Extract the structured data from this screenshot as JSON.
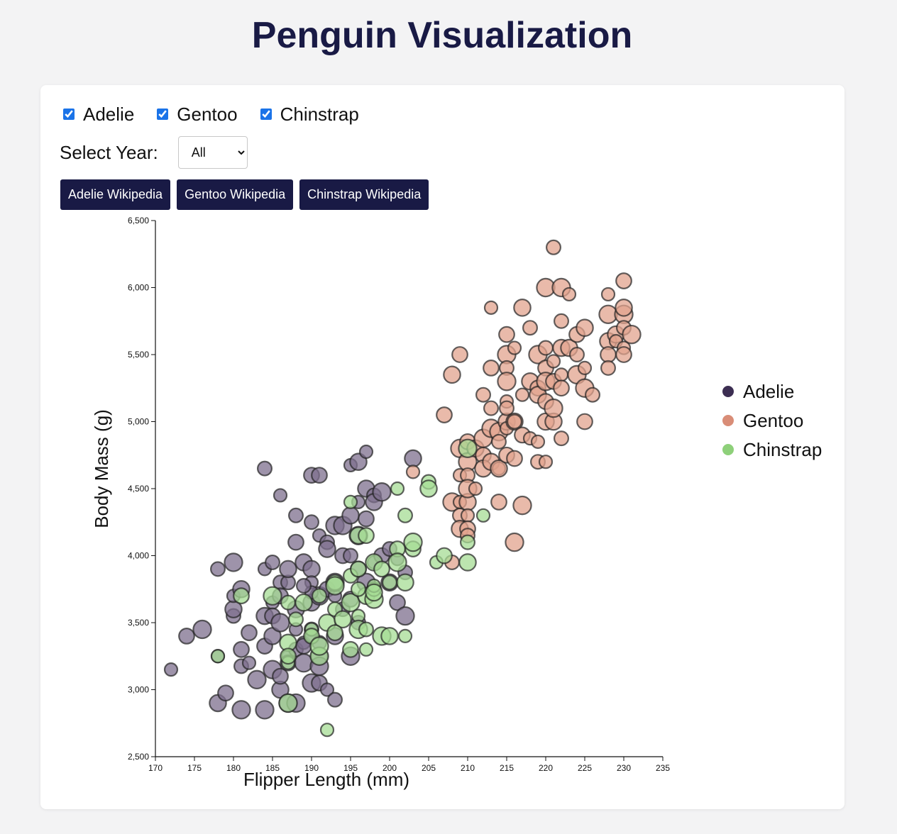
{
  "header": {
    "title": "Penguin Visualization"
  },
  "filters": {
    "species": [
      {
        "label": "Adelie",
        "checked": true
      },
      {
        "label": "Gentoo",
        "checked": true
      },
      {
        "label": "Chinstrap",
        "checked": true
      }
    ],
    "year_label": "Select Year:",
    "year_selected": "All"
  },
  "links": [
    {
      "label": "Adelie Wikipedia"
    },
    {
      "label": "Gentoo Wikipedia"
    },
    {
      "label": "Chinstrap Wikipedia"
    }
  ],
  "chart_data": {
    "type": "scatter",
    "title": "",
    "xlabel": "Flipper Length (mm)",
    "ylabel": "Body Mass (g)",
    "xlim": [
      170,
      235
    ],
    "ylim": [
      2500,
      6500
    ],
    "xticks": [
      170,
      175,
      180,
      185,
      190,
      195,
      200,
      205,
      210,
      215,
      220,
      225,
      230,
      235
    ],
    "yticks": [
      2500,
      3000,
      3500,
      4000,
      4500,
      5000,
      5500,
      6000,
      6500
    ],
    "ytick_labels": [
      "2,500",
      "3,000",
      "3,500",
      "4,000",
      "4,500",
      "5,000",
      "5,500",
      "6,000",
      "6,500"
    ],
    "grid": false,
    "legend_position": "right",
    "series": [
      {
        "name": "Adelie",
        "color": "#3c2e52",
        "fill": "#7d6f8e",
        "points": [
          [
            172,
            3150
          ],
          [
            174,
            3400
          ],
          [
            176,
            3450
          ],
          [
            178,
            3900
          ],
          [
            178,
            2900
          ],
          [
            178,
            3250
          ],
          [
            179,
            2975
          ],
          [
            180,
            3950
          ],
          [
            180,
            3550
          ],
          [
            180,
            3600
          ],
          [
            180,
            3700
          ],
          [
            181,
            3300
          ],
          [
            181,
            2850
          ],
          [
            181,
            3175
          ],
          [
            181,
            3750
          ],
          [
            182,
            3200
          ],
          [
            182,
            3425
          ],
          [
            183,
            3075
          ],
          [
            184,
            4650
          ],
          [
            184,
            3550
          ],
          [
            184,
            3900
          ],
          [
            184,
            3325
          ],
          [
            184,
            2850
          ],
          [
            185,
            3950
          ],
          [
            185,
            3400
          ],
          [
            185,
            3650
          ],
          [
            185,
            3550
          ],
          [
            185,
            3150
          ],
          [
            186,
            3800
          ],
          [
            186,
            3000
          ],
          [
            186,
            4450
          ],
          [
            186,
            3100
          ],
          [
            186,
            3500
          ],
          [
            187,
            3800
          ],
          [
            187,
            3900
          ],
          [
            187,
            3250
          ],
          [
            187,
            3200
          ],
          [
            187,
            2900
          ],
          [
            188,
            3300
          ],
          [
            188,
            3600
          ],
          [
            188,
            3450
          ],
          [
            188,
            4100
          ],
          [
            188,
            2900
          ],
          [
            188,
            4300
          ],
          [
            189,
            3950
          ],
          [
            189,
            3350
          ],
          [
            189,
            3325
          ],
          [
            189,
            3200
          ],
          [
            190,
            4250
          ],
          [
            190,
            3900
          ],
          [
            190,
            3800
          ],
          [
            190,
            4600
          ],
          [
            190,
            3050
          ],
          [
            190,
            3450
          ],
          [
            190,
            3650
          ],
          [
            190,
            3400
          ],
          [
            191,
            4600
          ],
          [
            191,
            3700
          ],
          [
            191,
            3350
          ],
          [
            191,
            3250
          ],
          [
            191,
            4150
          ],
          [
            191,
            3050
          ],
          [
            191,
            3175
          ],
          [
            192,
            4100
          ],
          [
            192,
            4050
          ],
          [
            192,
            3000
          ],
          [
            192,
            3750
          ],
          [
            193,
            4225
          ],
          [
            193,
            2925
          ],
          [
            193,
            3400
          ],
          [
            193,
            3700
          ],
          [
            194,
            4000
          ],
          [
            194,
            4225
          ],
          [
            194,
            3600
          ],
          [
            195,
            4300
          ],
          [
            195,
            4675
          ],
          [
            195,
            3675
          ],
          [
            195,
            3250
          ],
          [
            195,
            4000
          ],
          [
            196,
            4700
          ],
          [
            196,
            4400
          ],
          [
            196,
            3900
          ],
          [
            196,
            4150
          ],
          [
            196,
            3500
          ],
          [
            197,
            4500
          ],
          [
            197,
            4775
          ],
          [
            197,
            4275
          ],
          [
            197,
            3800
          ],
          [
            198,
            4450
          ],
          [
            198,
            4400
          ],
          [
            198,
            3950
          ],
          [
            199,
            4000
          ],
          [
            199,
            4475
          ],
          [
            200,
            4050
          ],
          [
            200,
            3800
          ],
          [
            201,
            3975
          ],
          [
            201,
            3650
          ],
          [
            202,
            3550
          ],
          [
            202,
            3875
          ],
          [
            203,
            4725
          ],
          [
            190,
            3725
          ],
          [
            186,
            3700
          ],
          [
            193,
            3800
          ],
          [
            189,
            3775
          ]
        ]
      },
      {
        "name": "Gentoo",
        "color": "#3a2b24",
        "fill": "#e2a38e",
        "points": [
          [
            203,
            4625
          ],
          [
            207,
            5050
          ],
          [
            208,
            4400
          ],
          [
            208,
            3950
          ],
          [
            208,
            5350
          ],
          [
            209,
            4600
          ],
          [
            209,
            5500
          ],
          [
            209,
            4800
          ],
          [
            209,
            4300
          ],
          [
            209,
            4200
          ],
          [
            209,
            4400
          ],
          [
            210,
            4850
          ],
          [
            210,
            4700
          ],
          [
            210,
            4600
          ],
          [
            210,
            4400
          ],
          [
            210,
            4300
          ],
          [
            210,
            4200
          ],
          [
            210,
            4500
          ],
          [
            210,
            4150
          ],
          [
            211,
            4800
          ],
          [
            211,
            4500
          ],
          [
            212,
            4750
          ],
          [
            212,
            4875
          ],
          [
            212,
            5200
          ],
          [
            212,
            4650
          ],
          [
            213,
            5850
          ],
          [
            213,
            5400
          ],
          [
            213,
            4950
          ],
          [
            213,
            5100
          ],
          [
            213,
            4700
          ],
          [
            214,
            4650
          ],
          [
            214,
            4400
          ],
          [
            214,
            4925
          ],
          [
            214,
            4850
          ],
          [
            214,
            4650
          ],
          [
            215,
            5150
          ],
          [
            215,
            5650
          ],
          [
            215,
            5500
          ],
          [
            215,
            5400
          ],
          [
            215,
            5000
          ],
          [
            215,
            4950
          ],
          [
            215,
            4750
          ],
          [
            215,
            5300
          ],
          [
            215,
            5100
          ],
          [
            216,
            5000
          ],
          [
            216,
            5550
          ],
          [
            216,
            4725
          ],
          [
            216,
            4100
          ],
          [
            216,
            5000
          ],
          [
            217,
            5850
          ],
          [
            217,
            5200
          ],
          [
            217,
            4900
          ],
          [
            217,
            4375
          ],
          [
            218,
            5700
          ],
          [
            218,
            5300
          ],
          [
            218,
            4875
          ],
          [
            219,
            5250
          ],
          [
            219,
            5500
          ],
          [
            219,
            4700
          ],
          [
            219,
            5200
          ],
          [
            219,
            4850
          ],
          [
            220,
            5400
          ],
          [
            220,
            6000
          ],
          [
            220,
            5550
          ],
          [
            220,
            5000
          ],
          [
            220,
            4700
          ],
          [
            220,
            5150
          ],
          [
            220,
            5300
          ],
          [
            221,
            6300
          ],
          [
            221,
            5000
          ],
          [
            221,
            5450
          ],
          [
            221,
            5300
          ],
          [
            221,
            5100
          ],
          [
            222,
            5750
          ],
          [
            222,
            5550
          ],
          [
            222,
            5350
          ],
          [
            222,
            5250
          ],
          [
            222,
            6000
          ],
          [
            222,
            4875
          ],
          [
            223,
            5550
          ],
          [
            223,
            5950
          ],
          [
            224,
            5650
          ],
          [
            224,
            5350
          ],
          [
            224,
            5500
          ],
          [
            225,
            5700
          ],
          [
            225,
            5400
          ],
          [
            225,
            5000
          ],
          [
            225,
            5250
          ],
          [
            226,
            5200
          ],
          [
            228,
            5600
          ],
          [
            228,
            5950
          ],
          [
            228,
            5500
          ],
          [
            228,
            5800
          ],
          [
            228,
            5400
          ],
          [
            229,
            5650
          ],
          [
            229,
            5600
          ],
          [
            230,
            6050
          ],
          [
            230,
            5800
          ],
          [
            230,
            5700
          ],
          [
            230,
            5850
          ],
          [
            230,
            5550
          ],
          [
            230,
            5500
          ],
          [
            231,
            5650
          ]
        ]
      },
      {
        "name": "Chinstrap",
        "color": "#3e5a34",
        "fill": "#a6dc94",
        "points": [
          [
            178,
            3250
          ],
          [
            181,
            3700
          ],
          [
            185,
            3700
          ],
          [
            187,
            3650
          ],
          [
            187,
            3350
          ],
          [
            187,
            3200
          ],
          [
            187,
            3250
          ],
          [
            187,
            2900
          ],
          [
            188,
            3525
          ],
          [
            189,
            3650
          ],
          [
            190,
            3450
          ],
          [
            190,
            3400
          ],
          [
            191,
            3250
          ],
          [
            191,
            3700
          ],
          [
            192,
            3500
          ],
          [
            192,
            2700
          ],
          [
            193,
            3800
          ],
          [
            193,
            3775
          ],
          [
            193,
            3600
          ],
          [
            194,
            3525
          ],
          [
            195,
            4400
          ],
          [
            195,
            3300
          ],
          [
            195,
            3650
          ],
          [
            195,
            3850
          ],
          [
            196,
            4150
          ],
          [
            196,
            3550
          ],
          [
            196,
            3900
          ],
          [
            196,
            3450
          ],
          [
            197,
            3450
          ],
          [
            197,
            3700
          ],
          [
            197,
            3300
          ],
          [
            197,
            4150
          ],
          [
            198,
            3675
          ],
          [
            198,
            3750
          ],
          [
            198,
            3950
          ],
          [
            198,
            3775
          ],
          [
            199,
            3900
          ],
          [
            199,
            3400
          ],
          [
            200,
            3800
          ],
          [
            200,
            3400
          ],
          [
            201,
            4500
          ],
          [
            201,
            4050
          ],
          [
            201,
            3950
          ],
          [
            202,
            4300
          ],
          [
            202,
            3800
          ],
          [
            202,
            3400
          ],
          [
            203,
            4050
          ],
          [
            203,
            4100
          ],
          [
            205,
            4550
          ],
          [
            205,
            4500
          ],
          [
            206,
            3950
          ],
          [
            207,
            4000
          ],
          [
            210,
            4800
          ],
          [
            210,
            4100
          ],
          [
            210,
            3950
          ],
          [
            212,
            4300
          ],
          [
            193,
            3425
          ],
          [
            191,
            3325
          ],
          [
            196,
            3750
          ],
          [
            198,
            3725
          ]
        ]
      }
    ]
  }
}
